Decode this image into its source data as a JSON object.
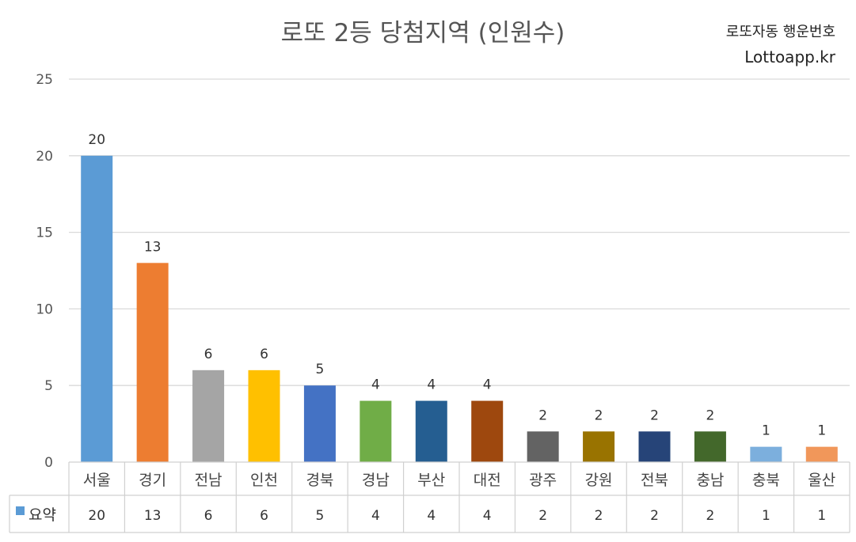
{
  "chart_data": {
    "type": "bar",
    "title": "로또 2등 당첨지역 (인원수)",
    "brand_line1": "로또자동 행운번호",
    "brand_line2": "Lottoapp.kr",
    "categories": [
      "서울",
      "경기",
      "전남",
      "인천",
      "경북",
      "경남",
      "부산",
      "대전",
      "광주",
      "강원",
      "전북",
      "충남",
      "충북",
      "울산"
    ],
    "series": [
      {
        "name": "요약",
        "values": [
          20,
          13,
          6,
          6,
          5,
          4,
          4,
          4,
          2,
          2,
          2,
          2,
          1,
          1
        ],
        "colors": [
          "#5b9bd5",
          "#ed7d31",
          "#a5a5a5",
          "#ffc000",
          "#4472c4",
          "#70ad47",
          "#255e91",
          "#9e480e",
          "#636363",
          "#997300",
          "#264478",
          "#43682b",
          "#7cafdd",
          "#f1975a"
        ]
      }
    ],
    "ylim": [
      0,
      25
    ],
    "yticks": [
      0,
      5,
      10,
      15,
      20,
      25
    ],
    "grid": true,
    "data_table": true,
    "legend_color": "#5b9bd5"
  }
}
